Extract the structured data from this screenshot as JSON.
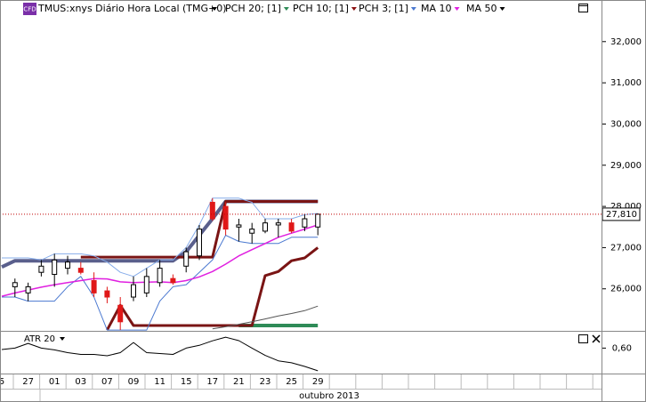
{
  "chart_data": {
    "type": "candlestick",
    "title": "TMUS:xnys Diário Hora Local (TMG+0)",
    "badge": "CFD",
    "categories": [
      "5",
      null,
      "27",
      null,
      "01",
      null,
      "03",
      null,
      "07",
      null,
      "09",
      null,
      "11",
      null,
      "15",
      null,
      "17",
      null,
      "21",
      null,
      "23",
      null,
      "25",
      null,
      "29"
    ],
    "x_label": "outubro 2013",
    "ylim": [
      24980,
      33010
    ],
    "yticks": [
      {
        "value": 26000,
        "label": "26,000"
      },
      {
        "value": 27000,
        "label": "27,000"
      },
      {
        "value": 28000,
        "label": "28,000"
      },
      {
        "value": 29000,
        "label": "29,000"
      },
      {
        "value": 30000,
        "label": "30,000"
      },
      {
        "value": 31000,
        "label": "31,000"
      },
      {
        "value": 32000,
        "label": "32,000"
      }
    ],
    "current_price": {
      "value": 27810,
      "label": "27,810"
    },
    "up_color": "#ffffff",
    "down_color": "#e01818",
    "candles": {
      "open": [
        null,
        26050,
        25900,
        26400,
        26350,
        26500,
        26500,
        26200,
        25950,
        25600,
        25800,
        25900,
        26150,
        26250,
        26550,
        26800,
        28100,
        28000,
        27500,
        27350,
        27400,
        27550,
        27600,
        27500,
        27500
      ],
      "high": [
        null,
        26250,
        26150,
        26700,
        26850,
        26800,
        26650,
        26400,
        26050,
        25800,
        26300,
        26500,
        26700,
        26350,
        27000,
        27550,
        28200,
        28100,
        27700,
        27600,
        27700,
        27700,
        27700,
        27800,
        27830
      ],
      "low": [
        null,
        25800,
        25700,
        26300,
        26050,
        26350,
        26350,
        25800,
        25650,
        25000,
        25700,
        25800,
        26050,
        26100,
        26400,
        26700,
        27650,
        27300,
        27150,
        27100,
        27350,
        27250,
        27350,
        27400,
        27300
      ],
      "close": [
        null,
        26150,
        26050,
        26550,
        26700,
        26650,
        26400,
        25900,
        25800,
        25200,
        26100,
        26300,
        26500,
        26150,
        26900,
        27450,
        27700,
        27450,
        27550,
        27450,
        27600,
        27600,
        27400,
        27700,
        27810
      ]
    },
    "series": [
      {
        "name": "PCH 20; [1]",
        "color": "#2e8b57",
        "upper_color": "#5a5f8c",
        "upper": [
          26530,
          26680,
          26680,
          26680,
          26680,
          26680,
          26680,
          26680,
          26680,
          26680,
          26680,
          26680,
          26680,
          26680,
          26900,
          27300,
          27700,
          28120,
          28120,
          28120,
          28120,
          28120,
          28120,
          28120,
          28120
        ],
        "lower": [
          null,
          null,
          null,
          null,
          null,
          null,
          null,
          null,
          null,
          null,
          null,
          null,
          null,
          null,
          null,
          null,
          null,
          null,
          25110,
          25110,
          25110,
          25110,
          25110,
          25110,
          25110
        ]
      },
      {
        "name": "PCH 10; [1]",
        "color": "#8b1010",
        "upper_color": "#7a1414",
        "upper": [
          null,
          null,
          null,
          null,
          null,
          null,
          26770,
          26770,
          26770,
          26770,
          26770,
          26770,
          26770,
          26770,
          26770,
          26770,
          26770,
          28120,
          28120,
          28120,
          28120,
          28120,
          28120,
          28120,
          28120
        ],
        "lower": [
          null,
          null,
          null,
          null,
          null,
          null,
          null,
          null,
          25000,
          25600,
          25110,
          25110,
          25110,
          25110,
          25110,
          25110,
          25110,
          25110,
          25110,
          25110,
          26320,
          26420,
          26680,
          26750,
          27000
        ]
      },
      {
        "name": "PCH 3; [1]",
        "color": "#4a78d0",
        "upper_color": "#86acea",
        "upper": [
          26750,
          26750,
          26750,
          26700,
          26850,
          26850,
          26850,
          26800,
          26650,
          26400,
          26300,
          26500,
          26700,
          26700,
          27000,
          27550,
          28200,
          28200,
          28200,
          28100,
          27700,
          27700,
          27700,
          27800,
          27830
        ],
        "lower": [
          25800,
          25800,
          25700,
          25700,
          25700,
          26050,
          26300,
          25800,
          25000,
          25000,
          25000,
          25000,
          25700,
          26050,
          26100,
          26400,
          26700,
          27300,
          27150,
          27100,
          27100,
          27100,
          27250,
          27250,
          27250
        ]
      },
      {
        "name": "MA 10",
        "color": "#e020e0",
        "values": [
          25820,
          25900,
          25970,
          26040,
          26100,
          26150,
          26200,
          26250,
          26240,
          26170,
          26150,
          26160,
          26170,
          26150,
          26200,
          26290,
          26420,
          26600,
          26800,
          26950,
          27100,
          27250,
          27350,
          27450,
          27550
        ]
      },
      {
        "name": "MA 50",
        "color": "#555555",
        "values": [
          null,
          null,
          null,
          null,
          null,
          null,
          null,
          null,
          null,
          null,
          null,
          null,
          null,
          null,
          null,
          null,
          25030,
          25080,
          25140,
          25200,
          25270,
          25340,
          25400,
          25470,
          25580
        ]
      }
    ],
    "atr": {
      "name": "ATR 20",
      "color": "#000000",
      "ylim": [
        0.46,
        0.69
      ],
      "yticks": [
        {
          "value": 0.6,
          "label": "0,60"
        }
      ],
      "values": [
        0.592,
        0.6,
        0.626,
        0.6,
        0.59,
        0.575,
        0.565,
        0.565,
        0.558,
        0.575,
        0.631,
        0.575,
        0.57,
        0.565,
        0.6,
        0.615,
        0.64,
        0.66,
        0.641,
        0.6,
        0.56,
        0.53,
        0.519,
        0.499,
        0.475
      ]
    }
  }
}
